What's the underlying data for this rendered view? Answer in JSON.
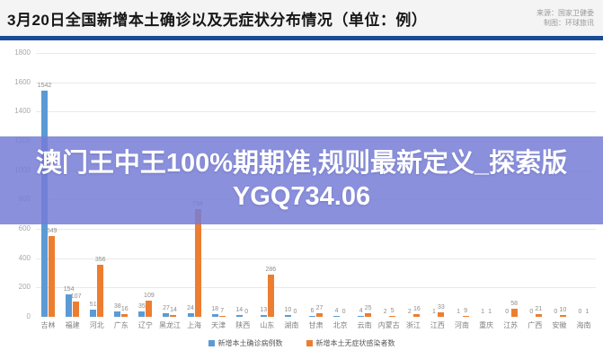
{
  "header": {
    "title": "3月20日全国新增本土确诊以及无症状分布情况（单位：例）",
    "source_line1": "来源：国家卫健委",
    "source_line2": "制图：环球旅讯"
  },
  "overlay": {
    "headline": "澳门王中王100%期期准,规则最新定义_探索版YGQ734.06"
  },
  "colors": {
    "rule_blue": "#1a4b96",
    "bar_blue": "#5b9bd5",
    "bar_orange": "#ed7d31",
    "overlay_bg": "rgba(117,125,214,0.85)"
  },
  "chart_data": {
    "type": "bar",
    "title": "3月20日全国新增本土确诊以及无症状分布情况（单位：例）",
    "xlabel": "",
    "ylabel": "",
    "ylim": [
      0,
      1800
    ],
    "tick_step": 200,
    "grid": true,
    "legend_position": "bottom",
    "categories": [
      "吉林",
      "福建",
      "河北",
      "广东",
      "辽宁",
      "黑龙江",
      "上海",
      "天津",
      "陕西",
      "山东",
      "湖南",
      "甘肃",
      "北京",
      "云南",
      "内蒙古",
      "浙江",
      "江西",
      "河南",
      "重庆",
      "江苏",
      "广西",
      "安徽",
      "海南"
    ],
    "series": [
      {
        "name": "新增本土确诊病例数",
        "color": "#5b9bd5",
        "values": [
          1542,
          154,
          51,
          38,
          35,
          27,
          24,
          18,
          14,
          13,
          10,
          6,
          4,
          4,
          2,
          2,
          1,
          1,
          1,
          0,
          0,
          0,
          0
        ]
      },
      {
        "name": "新增本土无症状感染者数",
        "color": "#ed7d31",
        "values": [
          549,
          107,
          356,
          16,
          109,
          14,
          734,
          7,
          0,
          286,
          0,
          27,
          0,
          25,
          5,
          16,
          33,
          9,
          1,
          58,
          21,
          10,
          1
        ]
      }
    ]
  }
}
